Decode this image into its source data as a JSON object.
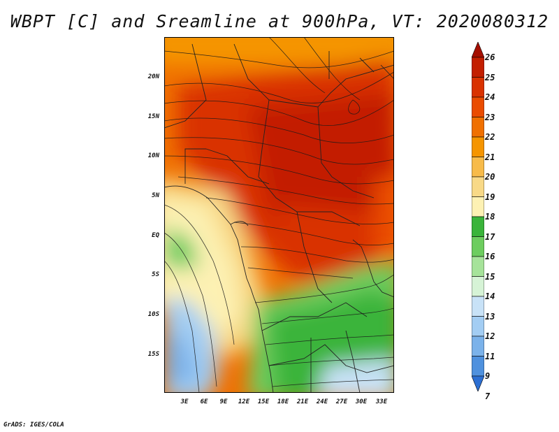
{
  "title": "WBPT [C] and Sreamline at 900hPa, VT: 2020080312",
  "footer": "GrADS: IGES/COLA",
  "map": {
    "lat_labels": [
      "20N",
      "15N",
      "10N",
      "5N",
      "EQ",
      "5S",
      "10S",
      "15S"
    ],
    "lon_labels": [
      "3E",
      "6E",
      "9E",
      "12E",
      "15E",
      "18E",
      "21E",
      "24E",
      "27E",
      "30E",
      "33E"
    ]
  },
  "colorbar": {
    "levels": [
      "26",
      "25",
      "24",
      "23",
      "22",
      "21",
      "20",
      "19",
      "18",
      "17",
      "16",
      "15",
      "14",
      "13",
      "12",
      "11",
      "9",
      "7"
    ],
    "colors": [
      "#a50f00",
      "#c31f00",
      "#d93200",
      "#ea4c00",
      "#f07000",
      "#f59500",
      "#f7bb4a",
      "#f8d987",
      "#fdf1b3",
      "#3ab43a",
      "#6dcd5f",
      "#a6e39a",
      "#d6f3d6",
      "#c8e2f7",
      "#a3cdf3",
      "#7bb2ea",
      "#4f91de",
      "#2c6fd3"
    ]
  }
}
